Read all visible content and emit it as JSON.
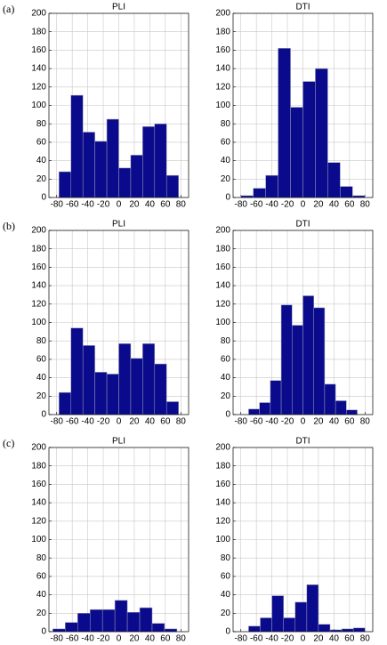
{
  "panel_labels": [
    "(a)",
    "(b)",
    "(c)"
  ],
  "chart_data": [
    {
      "type": "histogram",
      "title": "PLI",
      "bins": [
        -77,
        -61.6,
        -46.2,
        -30.8,
        -15.4,
        0,
        15.4,
        30.8,
        46.2,
        61.6,
        77
      ],
      "values": [
        28,
        111,
        71,
        61,
        85,
        32,
        46,
        77,
        80,
        24
      ],
      "color": "#0a0a8c",
      "xlim": [
        -90,
        90
      ],
      "ylim": [
        0,
        200
      ],
      "xticks": [
        -80,
        -60,
        -40,
        -20,
        0,
        20,
        40,
        60,
        80
      ],
      "yticks": [
        0,
        20,
        40,
        60,
        80,
        100,
        120,
        140,
        160,
        180,
        200
      ],
      "grid": true
    },
    {
      "type": "histogram",
      "title": "DTI",
      "bins": [
        -80,
        -64,
        -48,
        -32,
        -16,
        0,
        16,
        32,
        48,
        64,
        80
      ],
      "values": [
        2,
        10,
        24,
        162,
        98,
        126,
        140,
        38,
        12,
        2
      ],
      "color": "#0a0a8c",
      "xlim": [
        -90,
        90
      ],
      "ylim": [
        0,
        200
      ],
      "xticks": [
        -80,
        -60,
        -40,
        -20,
        0,
        20,
        40,
        60,
        80
      ],
      "yticks": [
        0,
        20,
        40,
        60,
        80,
        100,
        120,
        140,
        160,
        180,
        200
      ],
      "grid": true
    },
    {
      "type": "histogram",
      "title": "PLI",
      "bins": [
        -77,
        -61.6,
        -46.2,
        -30.8,
        -15.4,
        0,
        15.4,
        30.8,
        46.2,
        61.6,
        77
      ],
      "values": [
        24,
        94,
        75,
        46,
        44,
        77,
        61,
        77,
        55,
        14
      ],
      "color": "#0a0a8c",
      "xlim": [
        -90,
        90
      ],
      "ylim": [
        0,
        200
      ],
      "xticks": [
        -80,
        -60,
        -40,
        -20,
        0,
        20,
        40,
        60,
        80
      ],
      "yticks": [
        0,
        20,
        40,
        60,
        80,
        100,
        120,
        140,
        160,
        180,
        200
      ],
      "grid": true
    },
    {
      "type": "histogram",
      "title": "DTI",
      "bins": [
        -70,
        -56,
        -42,
        -28,
        -14,
        0,
        14,
        28,
        42,
        56,
        70
      ],
      "values": [
        6,
        13,
        37,
        119,
        97,
        129,
        116,
        33,
        15,
        5
      ],
      "color": "#0a0a8c",
      "xlim": [
        -90,
        90
      ],
      "ylim": [
        0,
        200
      ],
      "xticks": [
        -80,
        -60,
        -40,
        -20,
        0,
        20,
        40,
        60,
        80
      ],
      "yticks": [
        0,
        20,
        40,
        60,
        80,
        100,
        120,
        140,
        160,
        180,
        200
      ],
      "grid": true
    },
    {
      "type": "histogram",
      "title": "PLI",
      "bins": [
        -85,
        -69,
        -53,
        -37,
        -21,
        -5,
        11,
        27,
        43,
        59,
        75
      ],
      "values": [
        3,
        10,
        20,
        24,
        24,
        34,
        21,
        26,
        9,
        3
      ],
      "color": "#0a0a8c",
      "xlim": [
        -90,
        90
      ],
      "ylim": [
        0,
        200
      ],
      "xticks": [
        -80,
        -60,
        -40,
        -20,
        0,
        20,
        40,
        60,
        80
      ],
      "yticks": [
        0,
        20,
        40,
        60,
        80,
        100,
        120,
        140,
        160,
        180,
        200
      ],
      "grid": true
    },
    {
      "type": "histogram",
      "title": "DTI",
      "bins": [
        -70,
        -55,
        -40,
        -25,
        -10,
        5,
        20,
        35,
        50,
        65,
        80
      ],
      "values": [
        6,
        15,
        39,
        15,
        32,
        51,
        8,
        2,
        3,
        4
      ],
      "color": "#0a0a8c",
      "xlim": [
        -90,
        90
      ],
      "ylim": [
        0,
        200
      ],
      "xticks": [
        -80,
        -60,
        -40,
        -20,
        0,
        20,
        40,
        60,
        80
      ],
      "yticks": [
        0,
        20,
        40,
        60,
        80,
        100,
        120,
        140,
        160,
        180,
        200
      ],
      "grid": true
    }
  ]
}
